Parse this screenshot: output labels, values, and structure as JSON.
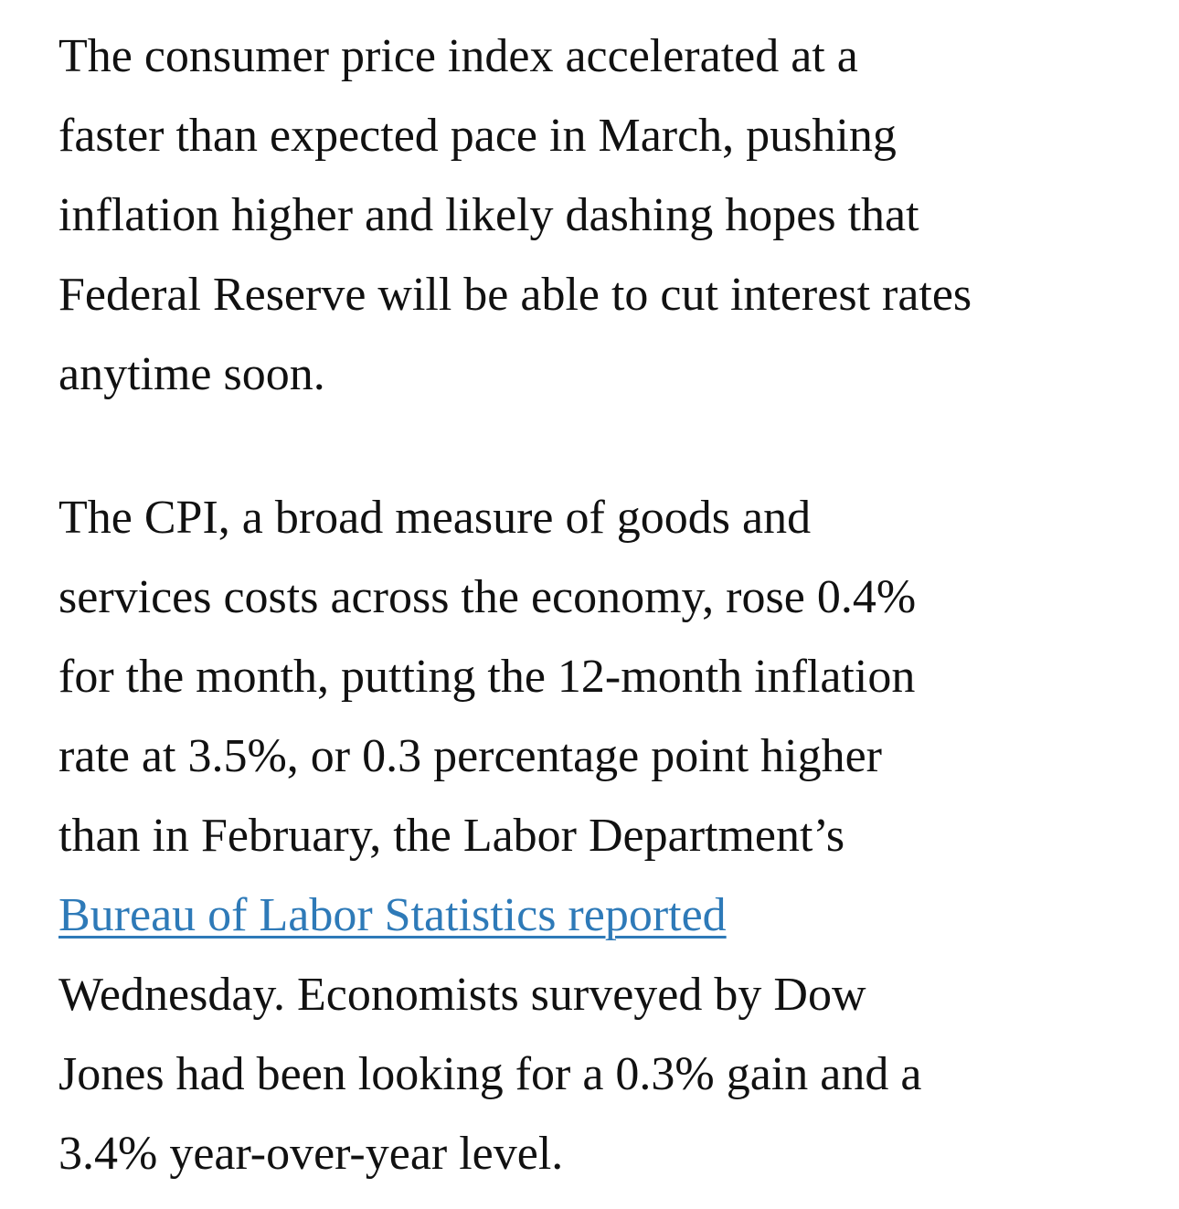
{
  "article": {
    "paragraph_1": {
      "lines": [
        "The consumer price index accelerated at a",
        "faster than expected pace in March, pushing",
        "inflation higher and likely dashing hopes that",
        "Federal Reserve will be able to cut interest rates",
        "anytime soon."
      ]
    },
    "paragraph_2": {
      "lines_before_link": [
        "The CPI, a broad measure of goods and",
        "services costs across the economy, rose 0.4%",
        "for the month, putting the 12-month inflation",
        "rate at 3.5%, or 0.3 percentage point higher",
        "than in February, the Labor Department’s"
      ],
      "link_text": "Bureau of Labor Statistics reported",
      "lines_after_link": [
        "Wednesday. Economists surveyed by Dow",
        "Jones had been looking for a 0.3% gain and a",
        "3.4% year-over-year level."
      ]
    },
    "link_color": "#2e7ab8",
    "text_color": "#111111"
  }
}
